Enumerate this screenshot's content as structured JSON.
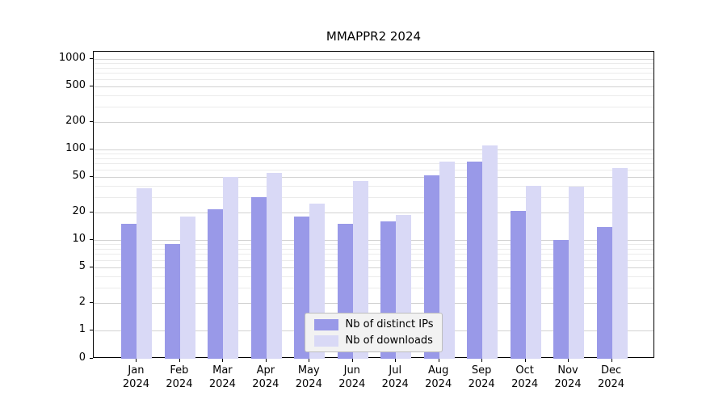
{
  "chart_data": {
    "type": "bar",
    "title": "MMAPPR2 2024",
    "categories": [
      "Jan",
      "Feb",
      "Mar",
      "Apr",
      "May",
      "Jun",
      "Jul",
      "Aug",
      "Sep",
      "Oct",
      "Nov",
      "Dec"
    ],
    "year": "2024",
    "series": [
      {
        "name": "Nb of distinct IPs",
        "color": "#9999e8",
        "values": [
          15,
          9,
          22,
          30,
          18,
          15,
          16,
          52,
          73,
          21,
          10,
          14
        ]
      },
      {
        "name": "Nb of downloads",
        "color": "#d9d9f6",
        "values": [
          37,
          18,
          50,
          55,
          25,
          45,
          19,
          73,
          110,
          40,
          39,
          62
        ]
      }
    ],
    "xlabel": "",
    "ylabel": "",
    "yscale": "log",
    "yticks": [
      0,
      1,
      2,
      5,
      10,
      20,
      50,
      100,
      200,
      500,
      1000
    ],
    "ylim": [
      0,
      1200
    ],
    "grid": "on",
    "legend_position": "lower center"
  }
}
